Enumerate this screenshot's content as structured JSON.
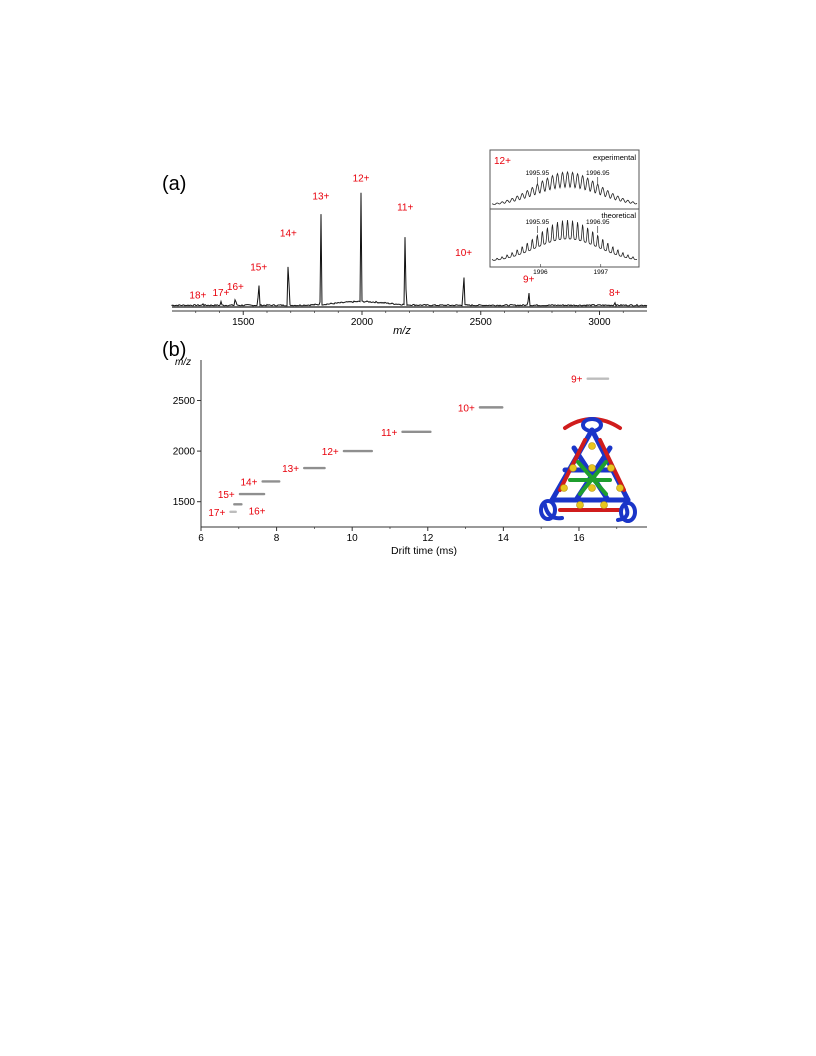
{
  "panel_labels": {
    "a": "(a)",
    "b": "(b)"
  },
  "chart_data": [
    {
      "type": "line",
      "panel": "(a)",
      "title": "",
      "xlabel": "m/z",
      "ylabel": "",
      "xlim": [
        1200,
        3200
      ],
      "ylim": [
        0,
        1
      ],
      "xticks": [
        1500,
        2000,
        2500,
        3000
      ],
      "grid": false,
      "peaks": [
        {
          "label": "18+",
          "mz": 1330,
          "intensity": 0.02
        },
        {
          "label": "17+",
          "mz": 1406,
          "intensity": 0.04
        },
        {
          "label": "16+",
          "mz": 1467,
          "intensity": 0.09
        },
        {
          "label": "15+",
          "mz": 1565,
          "intensity": 0.25
        },
        {
          "label": "14+",
          "mz": 1690,
          "intensity": 0.53
        },
        {
          "label": "13+",
          "mz": 1827,
          "intensity": 0.83
        },
        {
          "label": "12+",
          "mz": 1996,
          "intensity": 0.98
        },
        {
          "label": "11+",
          "mz": 2182,
          "intensity": 0.74
        },
        {
          "label": "10+",
          "mz": 2428,
          "intensity": 0.37
        },
        {
          "label": "9+",
          "mz": 2702,
          "intensity": 0.15
        },
        {
          "label": "8+",
          "mz": 3064,
          "intensity": 0.04
        }
      ],
      "inset": {
        "charge_label": "12+",
        "xlim": [
          1995.2,
          1997.6
        ],
        "xticks": [
          1996,
          1997
        ],
        "series": [
          {
            "name": "experimental",
            "annotations": [
              {
                "x": 1995.95,
                "label": "1995.95"
              },
              {
                "x": 1996.95,
                "label": "1996.95"
              }
            ]
          },
          {
            "name": "theoretical",
            "annotations": [
              {
                "x": 1995.95,
                "label": "1995.95"
              },
              {
                "x": 1996.95,
                "label": "1996.95"
              }
            ]
          }
        ]
      }
    },
    {
      "type": "scatter",
      "panel": "(b)",
      "title": "",
      "xlabel": "Drift time (ms)",
      "ylabel": "m/z",
      "xlim": [
        6,
        17.8
      ],
      "ylim": [
        1250,
        2900
      ],
      "xticks": [
        6,
        8,
        10,
        12,
        14,
        16
      ],
      "yticks": [
        1500,
        2000,
        2500
      ],
      "grid": false,
      "points": [
        {
          "label": "17+",
          "drift_start": 6.75,
          "drift_end": 6.95,
          "mz": 1400
        },
        {
          "label": "16+",
          "drift_start": 6.85,
          "drift_end": 7.1,
          "mz": 1474
        },
        {
          "label": "15+",
          "drift_start": 7.0,
          "drift_end": 7.7,
          "mz": 1575
        },
        {
          "label": "14+",
          "drift_start": 7.6,
          "drift_end": 8.1,
          "mz": 1700
        },
        {
          "label": "13+",
          "drift_start": 8.7,
          "drift_end": 9.3,
          "mz": 1832
        },
        {
          "label": "12+",
          "drift_start": 9.75,
          "drift_end": 10.55,
          "mz": 2000
        },
        {
          "label": "11+",
          "drift_start": 11.3,
          "drift_end": 12.1,
          "mz": 2190
        },
        {
          "label": "10+",
          "drift_start": 13.35,
          "drift_end": 14.0,
          "mz": 2432
        },
        {
          "label": "9+",
          "drift_start": 16.2,
          "drift_end": 16.8,
          "mz": 2715
        }
      ]
    }
  ],
  "colors": {
    "label": "#e8000b",
    "trace": "#111111",
    "band": "#8f8f8f",
    "mol_red": "#d01c1c",
    "mol_blue": "#1a35c8",
    "mol_green": "#1e9e2e",
    "mol_yellow": "#e8c51e"
  },
  "molecule": {
    "icon": "tetrahedral-cage-icon"
  }
}
